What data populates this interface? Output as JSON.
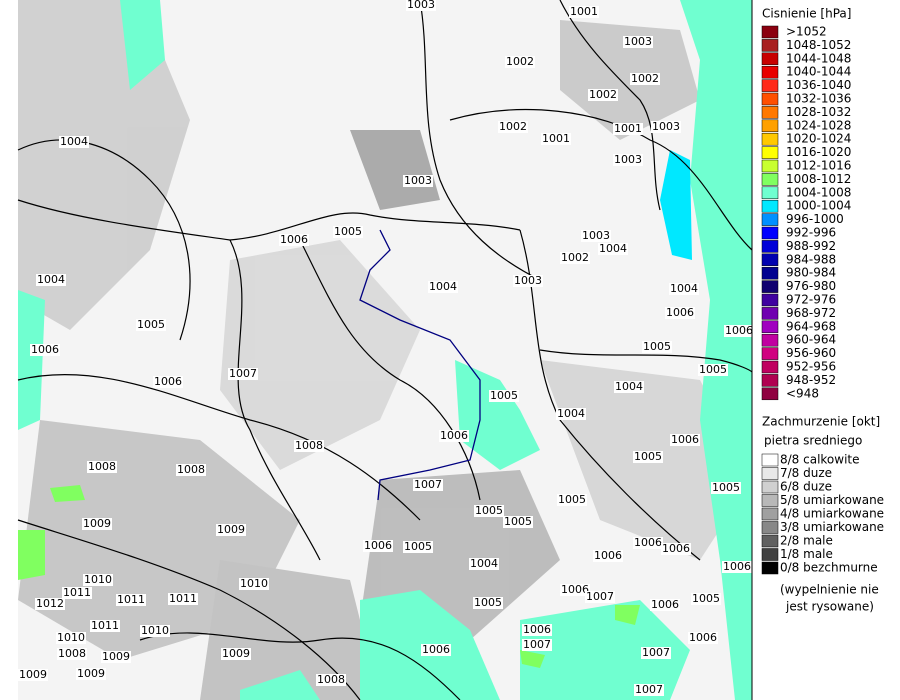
{
  "legend_pressure": {
    "title": "Cisnienie [hPa]",
    "entries": [
      {
        "label": ">1052",
        "color": "#8b0010"
      },
      {
        "label": "1048-1052",
        "color": "#a82020"
      },
      {
        "label": "1044-1048",
        "color": "#c80000"
      },
      {
        "label": "1040-1044",
        "color": "#e80000"
      },
      {
        "label": "1036-1040",
        "color": "#ff2a1a"
      },
      {
        "label": "1032-1036",
        "color": "#ff5000"
      },
      {
        "label": "1028-1032",
        "color": "#ff7800"
      },
      {
        "label": "1024-1028",
        "color": "#ffa000"
      },
      {
        "label": "1020-1024",
        "color": "#ffc800"
      },
      {
        "label": "1016-1020",
        "color": "#ffff00"
      },
      {
        "label": "1012-1016",
        "color": "#c8ff30"
      },
      {
        "label": "1008-1012",
        "color": "#80ff60"
      },
      {
        "label": "1004-1008",
        "color": "#70ffd0"
      },
      {
        "label": "1000-1004",
        "color": "#00e8ff"
      },
      {
        "label": "996-1000",
        "color": "#0090ff"
      },
      {
        "label": "992-996",
        "color": "#0000ff"
      },
      {
        "label": "988-992",
        "color": "#0000d8"
      },
      {
        "label": "984-988",
        "color": "#0000b0"
      },
      {
        "label": "980-984",
        "color": "#000090"
      },
      {
        "label": "976-980",
        "color": "#100070"
      },
      {
        "label": "972-976",
        "color": "#4000a0"
      },
      {
        "label": "968-972",
        "color": "#7000b0"
      },
      {
        "label": "964-968",
        "color": "#a000c0"
      },
      {
        "label": "960-964",
        "color": "#c000a0"
      },
      {
        "label": "956-960",
        "color": "#d00080"
      },
      {
        "label": "952-956",
        "color": "#c00060"
      },
      {
        "label": "948-952",
        "color": "#b00050"
      },
      {
        "label": "<948",
        "color": "#900040"
      }
    ]
  },
  "legend_clouds": {
    "title": "Zachmurzenie [okt]",
    "subtitle": "pietra sredniego",
    "entries": [
      {
        "label": "8/8 calkowite",
        "color": "#ffffff"
      },
      {
        "label": "7/8 duze",
        "color": "#e8e8e8"
      },
      {
        "label": "6/8 duze",
        "color": "#d0d0d0"
      },
      {
        "label": "5/8 umiarkowane",
        "color": "#b8b8b8"
      },
      {
        "label": "4/8 umiarkowane",
        "color": "#a0a0a0"
      },
      {
        "label": "3/8 umiarkowane",
        "color": "#888888"
      },
      {
        "label": "2/8 male",
        "color": "#606060"
      },
      {
        "label": "1/8 male",
        "color": "#404040"
      },
      {
        "label": "0/8 bezchmurne",
        "color": "#000000"
      }
    ],
    "note": [
      "(wypelnienie nie",
      "jest rysowane)"
    ]
  },
  "isobar_labels": [
    "1003",
    "1001",
    "1003",
    "1002",
    "1002",
    "1002",
    "1002",
    "1001",
    "1003",
    "1001",
    "1004",
    "1003",
    "1003",
    "1006",
    "1005",
    "1003",
    "1004",
    "1002",
    "1004",
    "1003",
    "1004",
    "1004",
    "1005",
    "1006",
    "1006",
    "1006",
    "1005",
    "1007",
    "1006",
    "1005",
    "1004",
    "1005",
    "1004",
    "1006",
    "1006",
    "1008",
    "1005",
    "1008",
    "1008",
    "1007",
    "1005",
    "1005",
    "1005",
    "1005",
    "1009",
    "1009",
    "1006",
    "1005",
    "1006",
    "1006",
    "1006",
    "1004",
    "1006",
    "1010",
    "1010",
    "1011",
    "1012",
    "1011",
    "1011",
    "1006",
    "1007",
    "1005",
    "1006",
    "1005",
    "1011",
    "1010",
    "1010",
    "1006",
    "1006",
    "1008",
    "1009",
    "1009",
    "1006",
    "1007",
    "1007",
    "1008",
    "1009",
    "1009",
    "1007"
  ]
}
